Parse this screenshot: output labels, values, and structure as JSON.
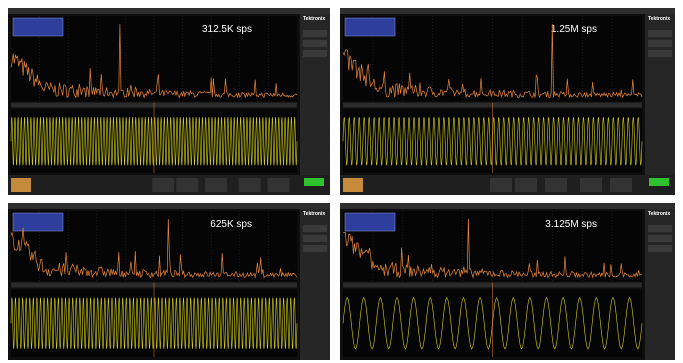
{
  "panels": [
    {
      "rate": "312.5K sps",
      "brand": "Tektronix"
    },
    {
      "rate": "1.25M sps",
      "brand": "Tektronix"
    },
    {
      "rate": "625K sps",
      "brand": "Tektronix"
    },
    {
      "rate": "3.125M sps",
      "brand": "Tektronix"
    }
  ]
}
